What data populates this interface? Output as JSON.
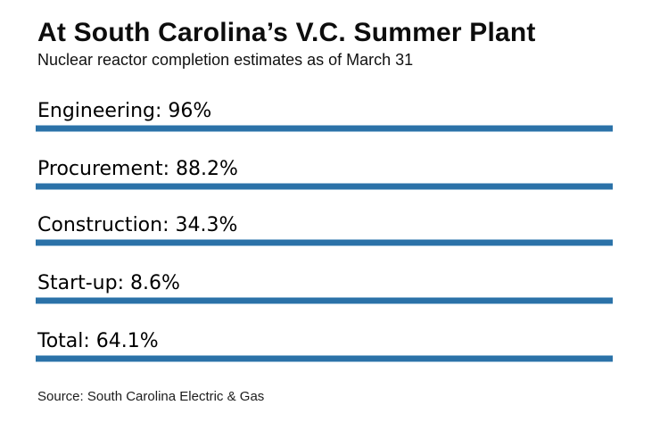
{
  "chart_data": {
    "type": "bar",
    "title": "At South Carolina’s V.C. Summer Plant",
    "subtitle": "Nuclear reactor completion estimates as of March 31",
    "source": "Source: South Carolina Electric & Gas",
    "categories": [
      "Engineering",
      "Procurement",
      "Construction",
      "Start-up",
      "Total"
    ],
    "values": [
      96,
      88.2,
      34.3,
      8.6,
      64.1
    ],
    "value_labels": [
      "96%",
      "88.2%",
      "34.3%",
      "8.6%",
      "64.1%"
    ],
    "row_displays": [
      "Engineering:  96%",
      "Procurement:  88.2%",
      "Construction:  34.3%",
      "Start-up:  8.6%",
      "Total:  64.1%"
    ],
    "bar_color": "#2b72a8",
    "bar_edge_color": "#94bad6",
    "background_color": "#ffffff",
    "layout": "list of label rows each underlined by a full-width horizontal blue rule; rules are equal length (not proportional to values); no axes, no gridlines, no legend"
  }
}
